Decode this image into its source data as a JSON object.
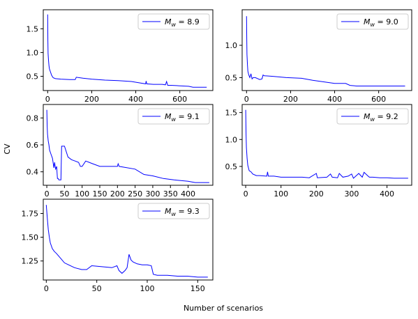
{
  "figure": {
    "ylabel": "CV",
    "xlabel": "Number of scenarios"
  },
  "colors": {
    "series": "#0000ff",
    "axes": "#000000",
    "background": "#ffffff"
  },
  "chart_data": [
    {
      "type": "line",
      "legend": {
        "prefix": "M",
        "subscript": "w",
        "value": " = 8.9",
        "position": "top-right"
      },
      "xlim": [
        -20,
        750
      ],
      "ylim": [
        0.2,
        1.9
      ],
      "xticks": [
        0,
        200,
        400,
        600
      ],
      "yticks": [
        0.5,
        1.0,
        1.5
      ],
      "xticklabels": [
        "0",
        "200",
        "400",
        "600"
      ],
      "yticklabels": [
        "0.5",
        "1.0",
        "1.5"
      ],
      "x": [
        0,
        1,
        2,
        4,
        6,
        8,
        12,
        18,
        25,
        35,
        60,
        100,
        125,
        130,
        160,
        200,
        260,
        320,
        380,
        420,
        445,
        447,
        450,
        480,
        520,
        535,
        540,
        545,
        560,
        600,
        640,
        660,
        700,
        722
      ],
      "y": [
        1.8,
        1.25,
        0.98,
        0.82,
        0.72,
        0.66,
        0.6,
        0.52,
        0.47,
        0.45,
        0.44,
        0.43,
        0.43,
        0.48,
        0.46,
        0.44,
        0.42,
        0.41,
        0.39,
        0.36,
        0.34,
        0.4,
        0.34,
        0.33,
        0.33,
        0.32,
        0.39,
        0.31,
        0.31,
        0.3,
        0.29,
        0.27,
        0.27,
        0.27
      ]
    },
    {
      "type": "line",
      "legend": {
        "prefix": "M",
        "subscript": "w",
        "value": " = 9.0",
        "position": "top-right"
      },
      "xlim": [
        -20,
        750
      ],
      "ylim": [
        0.3,
        1.55
      ],
      "xticks": [
        0,
        200,
        400,
        600
      ],
      "yticks": [
        0.5,
        1.0
      ],
      "xticklabels": [
        "0",
        "200",
        "400",
        "600"
      ],
      "yticklabels": [
        "0.5",
        "1.0"
      ],
      "x": [
        0,
        1,
        2,
        4,
        6,
        10,
        15,
        20,
        25,
        30,
        40,
        60,
        70,
        75,
        80,
        120,
        180,
        250,
        300,
        400,
        450,
        470,
        500,
        560,
        620,
        720
      ],
      "y": [
        1.45,
        1.1,
        0.86,
        0.7,
        0.6,
        0.54,
        0.5,
        0.56,
        0.48,
        0.5,
        0.5,
        0.47,
        0.48,
        0.54,
        0.53,
        0.52,
        0.5,
        0.49,
        0.46,
        0.41,
        0.41,
        0.38,
        0.37,
        0.37,
        0.37,
        0.37
      ]
    },
    {
      "type": "line",
      "legend": {
        "prefix": "M",
        "subscript": "w",
        "value": " = 9.1",
        "position": "top-right"
      },
      "xlim": [
        -10,
        470
      ],
      "ylim": [
        0.3,
        0.9
      ],
      "xticks": [
        0,
        50,
        100,
        150,
        200,
        250,
        300,
        350,
        400
      ],
      "yticks": [
        0.4,
        0.6,
        0.8
      ],
      "xticklabels": [
        "0",
        "50",
        "100",
        "150",
        "200",
        "250",
        "300",
        "350",
        "400"
      ],
      "yticklabels": [
        "0.4",
        "0.6",
        "0.8"
      ],
      "x": [
        0,
        1,
        2,
        4,
        6,
        8,
        12,
        16,
        20,
        22,
        25,
        28,
        30,
        32,
        34,
        40,
        42,
        44,
        50,
        60,
        70,
        80,
        90,
        95,
        100,
        110,
        130,
        150,
        200,
        202,
        205,
        250,
        275,
        300,
        330,
        360,
        400,
        420,
        460
      ],
      "y": [
        0.86,
        0.74,
        0.68,
        0.63,
        0.6,
        0.56,
        0.53,
        0.5,
        0.43,
        0.47,
        0.42,
        0.44,
        0.35,
        0.35,
        0.34,
        0.34,
        0.59,
        0.59,
        0.59,
        0.51,
        0.49,
        0.48,
        0.47,
        0.44,
        0.44,
        0.48,
        0.46,
        0.44,
        0.44,
        0.46,
        0.44,
        0.42,
        0.38,
        0.37,
        0.35,
        0.34,
        0.33,
        0.32,
        0.32
      ]
    },
    {
      "type": "line",
      "legend": {
        "prefix": "M",
        "subscript": "w",
        "value": " = 9.2",
        "position": "top-right"
      },
      "xlim": [
        -10,
        470
      ],
      "ylim": [
        0.15,
        1.65
      ],
      "xticks": [
        0,
        100,
        200,
        300,
        400
      ],
      "yticks": [
        0.5,
        1.0,
        1.5
      ],
      "xticklabels": [
        "0",
        "100",
        "200",
        "300",
        "400"
      ],
      "yticklabels": [
        "0.5",
        "1.0",
        "1.5"
      ],
      "x": [
        0,
        1,
        2,
        4,
        6,
        10,
        15,
        20,
        30,
        40,
        60,
        62,
        64,
        80,
        100,
        130,
        160,
        180,
        200,
        203,
        230,
        240,
        245,
        260,
        265,
        275,
        290,
        300,
        305,
        320,
        330,
        335,
        345,
        350,
        360,
        380,
        400,
        420,
        460
      ],
      "y": [
        1.55,
        1.1,
        0.85,
        0.65,
        0.52,
        0.42,
        0.4,
        0.36,
        0.33,
        0.33,
        0.32,
        0.4,
        0.32,
        0.32,
        0.3,
        0.3,
        0.3,
        0.29,
        0.37,
        0.29,
        0.3,
        0.36,
        0.3,
        0.29,
        0.37,
        0.3,
        0.32,
        0.36,
        0.28,
        0.37,
        0.3,
        0.39,
        0.33,
        0.3,
        0.3,
        0.29,
        0.29,
        0.28,
        0.28
      ]
    },
    {
      "type": "line",
      "legend": {
        "prefix": "M",
        "subscript": "w",
        "value": " = 9.3",
        "position": "top-right"
      },
      "xlim": [
        -3,
        165
      ],
      "ylim": [
        1.05,
        1.9
      ],
      "xticks": [
        0,
        50,
        100,
        150
      ],
      "yticks": [
        1.25,
        1.5,
        1.75
      ],
      "xticklabels": [
        "0",
        "50",
        "100",
        "150"
      ],
      "yticklabels": [
        "1.25",
        "1.50",
        "1.75"
      ],
      "x": [
        0,
        1,
        2,
        3,
        4,
        6,
        8,
        10,
        14,
        18,
        22,
        28,
        35,
        40,
        45,
        55,
        65,
        70,
        72,
        75,
        78,
        80,
        82,
        84,
        86,
        90,
        95,
        100,
        104,
        106,
        110,
        120,
        130,
        140,
        150,
        160
      ],
      "y": [
        1.84,
        1.7,
        1.58,
        1.5,
        1.44,
        1.38,
        1.35,
        1.33,
        1.28,
        1.23,
        1.21,
        1.18,
        1.16,
        1.16,
        1.2,
        1.19,
        1.18,
        1.2,
        1.15,
        1.12,
        1.15,
        1.18,
        1.32,
        1.26,
        1.24,
        1.22,
        1.21,
        1.21,
        1.2,
        1.11,
        1.1,
        1.1,
        1.09,
        1.09,
        1.08,
        1.08
      ]
    }
  ]
}
